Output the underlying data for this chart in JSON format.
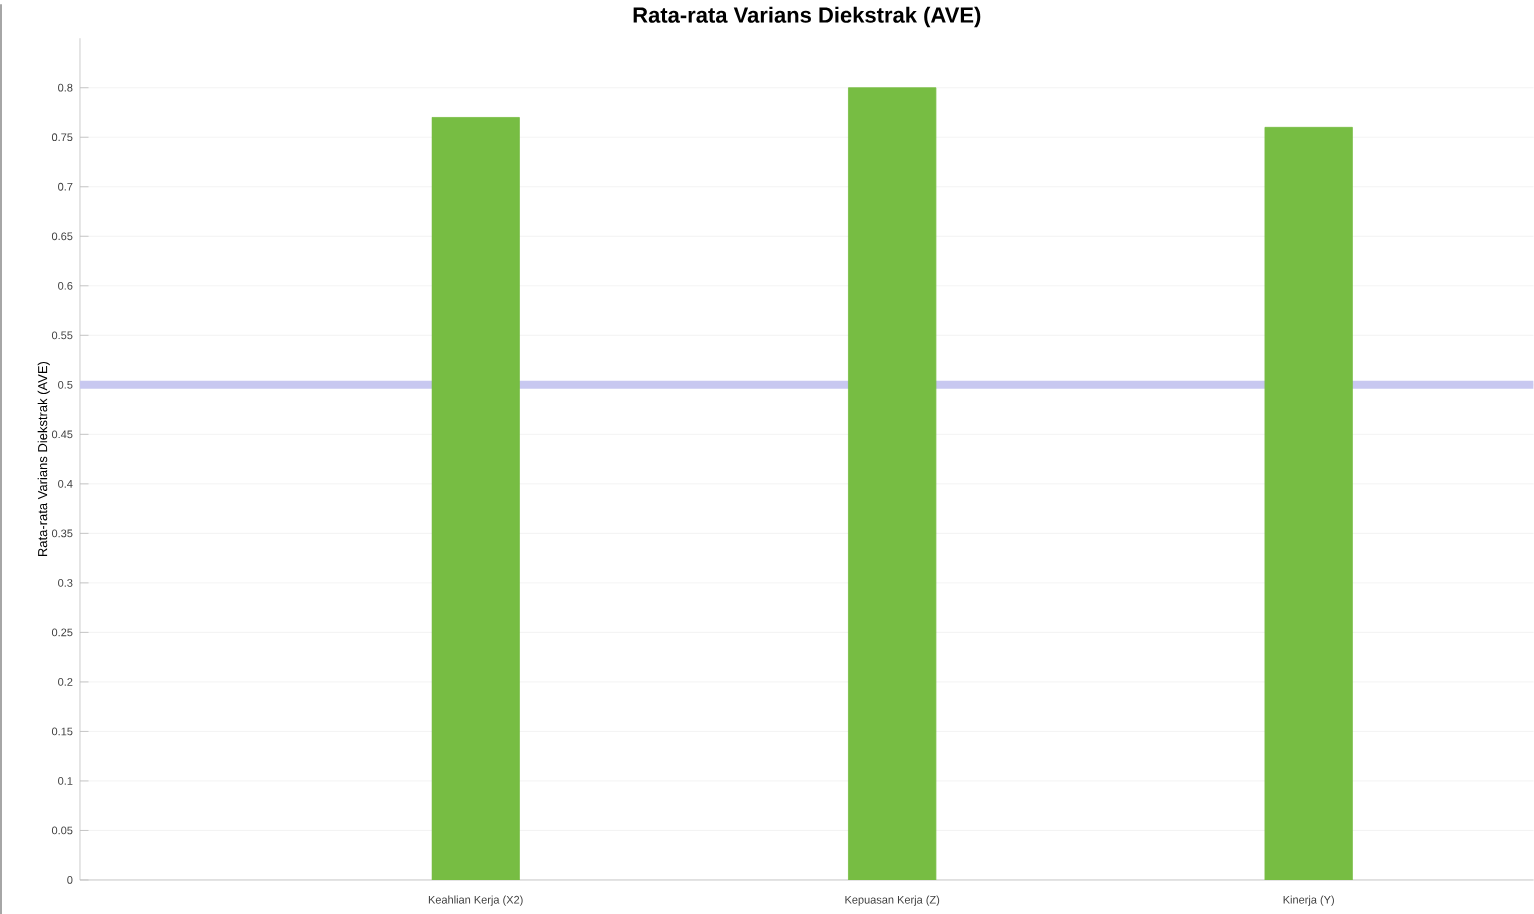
{
  "chart_data": {
    "type": "bar",
    "title": "Rata-rata Varians Diekstrak (AVE)",
    "ylabel": "Rata-rata Varians Diekstrak (AVE)",
    "categories": [
      "Keahlian Kerja (X2)",
      "Kepuasan Kerja (Z)",
      "Kinerja (Y)"
    ],
    "values": [
      0.77,
      0.8,
      0.76
    ],
    "color": "#77bd43",
    "ylim": [
      0,
      0.85
    ],
    "yticks": [
      0,
      0.05,
      0.1,
      0.15,
      0.2,
      0.25,
      0.3,
      0.35,
      0.4,
      0.45,
      0.5,
      0.55,
      0.6,
      0.65,
      0.7,
      0.75,
      0.8
    ],
    "grid": "y",
    "ref_lines": [
      {
        "axis": "y",
        "value": 0.5,
        "color": "#c8c8f0"
      }
    ]
  }
}
